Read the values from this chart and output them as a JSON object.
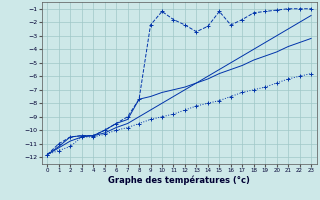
{
  "xlabel": "Graphe des températures (°c)",
  "background_color": "#cde8e8",
  "grid_color": "#a0c8c8",
  "line_color": "#0033aa",
  "xlim": [
    -0.5,
    23.5
  ],
  "ylim": [
    -12.5,
    -0.5
  ],
  "xticks": [
    0,
    1,
    2,
    3,
    4,
    5,
    6,
    7,
    8,
    9,
    10,
    11,
    12,
    13,
    14,
    15,
    16,
    17,
    18,
    19,
    20,
    21,
    22,
    23
  ],
  "yticks": [
    -12,
    -11,
    -10,
    -9,
    -8,
    -7,
    -6,
    -5,
    -4,
    -3,
    -2,
    -1
  ],
  "s1_x": [
    0,
    1,
    2,
    3,
    4,
    5,
    6,
    7,
    8,
    9,
    10,
    11,
    12,
    13,
    14,
    15,
    16,
    17,
    18,
    19,
    20,
    21,
    22,
    23
  ],
  "s1_y": [
    -11.8,
    -11.5,
    -11.2,
    -10.5,
    -10.5,
    -10.3,
    -10.0,
    -9.8,
    -9.5,
    -9.2,
    -9.0,
    -8.8,
    -8.5,
    -8.2,
    -8.0,
    -7.8,
    -7.5,
    -7.2,
    -7.0,
    -6.8,
    -6.5,
    -6.2,
    -6.0,
    -5.8
  ],
  "s2_x": [
    0,
    1,
    2,
    3,
    4,
    5,
    6,
    7,
    8,
    9,
    10,
    11,
    12,
    13,
    14,
    15,
    16,
    17,
    18,
    19,
    20,
    21,
    22,
    23
  ],
  "s2_y": [
    -11.8,
    -11.3,
    -10.8,
    -10.5,
    -10.4,
    -10.2,
    -9.8,
    -9.5,
    -9.0,
    -8.5,
    -8.0,
    -7.5,
    -7.0,
    -6.5,
    -6.0,
    -5.5,
    -5.0,
    -4.5,
    -4.0,
    -3.5,
    -3.0,
    -2.5,
    -2.0,
    -1.5
  ],
  "s3_x": [
    0,
    1,
    2,
    3,
    4,
    5,
    6,
    7,
    8,
    9,
    10,
    11,
    12,
    13,
    14,
    15,
    16,
    17,
    18,
    19,
    20,
    21,
    22,
    23
  ],
  "s3_y": [
    -11.8,
    -11.0,
    -10.5,
    -10.4,
    -10.4,
    -10.0,
    -9.5,
    -9.0,
    -7.7,
    -2.2,
    -1.2,
    -1.8,
    -2.2,
    -2.7,
    -2.3,
    -1.2,
    -2.2,
    -1.8,
    -1.3,
    -1.2,
    -1.1,
    -1.0,
    -1.0,
    -1.0
  ],
  "s4_x": [
    0,
    1,
    2,
    3,
    4,
    5,
    6,
    7,
    8,
    9,
    10,
    11,
    12,
    13,
    14,
    15,
    16,
    17,
    18,
    19,
    20,
    21,
    22,
    23
  ],
  "s4_y": [
    -11.8,
    -11.2,
    -10.5,
    -10.4,
    -10.4,
    -10.0,
    -9.5,
    -9.2,
    -7.7,
    -7.5,
    -7.2,
    -7.0,
    -6.8,
    -6.5,
    -6.2,
    -5.8,
    -5.5,
    -5.2,
    -4.8,
    -4.5,
    -4.2,
    -3.8,
    -3.5,
    -3.2
  ]
}
